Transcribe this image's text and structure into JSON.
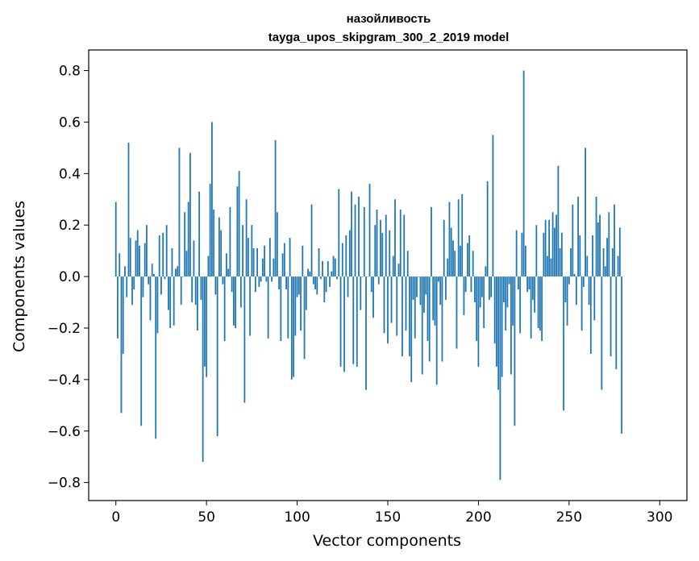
{
  "chart_data": {
    "type": "bar",
    "title_line1": "назойливость",
    "title_line2": "tayga_upos_skipgram_300_2_2019 model",
    "xlabel": "Vector components",
    "ylabel": "Components values",
    "xlim": [
      -15,
      315
    ],
    "ylim": [
      -0.87,
      0.88
    ],
    "x_ticks": [
      0,
      50,
      100,
      150,
      200,
      250,
      300
    ],
    "x_tick_labels": [
      "0",
      "50",
      "100",
      "150",
      "200",
      "250",
      "300"
    ],
    "y_ticks": [
      -0.8,
      -0.6,
      -0.4,
      -0.2,
      0.0,
      0.2,
      0.4,
      0.6,
      0.8
    ],
    "y_tick_labels": [
      "−0.8",
      "−0.6",
      "−0.4",
      "−0.2",
      "0.0",
      "0.2",
      "0.4",
      "0.6",
      "0.8"
    ],
    "grid": false,
    "bar_color": "#1f77b4",
    "values": [
      0.29,
      -0.24,
      0.09,
      -0.53,
      -0.3,
      0.04,
      -0.08,
      0.52,
      0.15,
      -0.11,
      -0.05,
      0.14,
      0.18,
      0.12,
      -0.58,
      -0.08,
      0.13,
      0.2,
      -0.03,
      -0.17,
      0.05,
      0.01,
      -0.63,
      -0.22,
      0.16,
      -0.07,
      0.17,
      -0.01,
      0.2,
      -0.13,
      -0.2,
      0.11,
      -0.19,
      0.03,
      0.04,
      0.5,
      -0.11,
      0.0,
      0.25,
      0.1,
      0.29,
      0.48,
      -0.1,
      0.14,
      -0.11,
      -0.21,
      0.33,
      -0.09,
      -0.72,
      -0.35,
      -0.39,
      0.08,
      0.36,
      0.6,
      0.26,
      -0.07,
      -0.62,
      0.23,
      0.18,
      -0.03,
      -0.25,
      0.09,
      0.03,
      0.27,
      -0.06,
      -0.19,
      -0.2,
      0.35,
      0.41,
      -0.12,
      0.2,
      -0.49,
      0.3,
      0.15,
      -0.23,
      0.2,
      0.11,
      -0.06,
      0.11,
      -0.04,
      -0.02,
      0.07,
      0.12,
      -0.02,
      -0.24,
      0.15,
      -0.02,
      0.07,
      0.53,
      0.25,
      -0.05,
      -0.25,
      0.09,
      0.13,
      -0.05,
      -0.24,
      0.15,
      -0.4,
      -0.39,
      -0.23,
      -0.08,
      -0.07,
      -0.21,
      0.12,
      -0.32,
      -0.13,
      0.03,
      0.02,
      0.28,
      -0.03,
      -0.05,
      -0.07,
      0.11,
      -0.01,
      0.06,
      -0.1,
      -0.06,
      0.06,
      -0.04,
      0.02,
      0.08,
      0.07,
      -0.01,
      0.34,
      -0.35,
      0.13,
      -0.37,
      0.16,
      -0.08,
      0.18,
      0.33,
      -0.34,
      0.28,
      -0.35,
      0.31,
      -0.13,
      0.0,
      0.27,
      -0.44,
      0.0,
      0.36,
      -0.06,
      -0.16,
      0.2,
      0.26,
      -0.03,
      0.22,
      0.17,
      -0.22,
      0.24,
      -0.26,
      0.18,
      -0.18,
      0.08,
      0.3,
      -0.23,
      0.05,
      0.26,
      -0.31,
      0.24,
      -0.21,
      0.1,
      -0.31,
      -0.41,
      -0.09,
      -0.24,
      -0.08,
      0.0,
      -0.11,
      -0.38,
      -0.14,
      -0.07,
      -0.25,
      -0.33,
      0.27,
      -0.17,
      -0.19,
      -0.42,
      -0.02,
      -0.11,
      -0.33,
      0.22,
      -0.09,
      0.07,
      0.29,
      0.19,
      0.14,
      0.1,
      -0.28,
      0.3,
      0.12,
      0.32,
      -0.15,
      -0.06,
      0.13,
      0.16,
      -0.06,
      0.1,
      -0.1,
      -0.25,
      -0.35,
      -0.12,
      -0.08,
      -0.2,
      0.04,
      0.37,
      -0.09,
      -0.08,
      0.55,
      -0.26,
      -0.35,
      -0.44,
      -0.79,
      -0.39,
      -0.1,
      -0.21,
      -0.12,
      -0.03,
      -0.38,
      -0.19,
      -0.58,
      0.18,
      -0.05,
      -0.22,
      0.17,
      0.8,
      0.12,
      -0.06,
      -0.05,
      -0.24,
      -0.09,
      -0.14,
      0.2,
      -0.2,
      -0.21,
      -0.25,
      0.17,
      0.22,
      0.08,
      0.22,
      0.07,
      0.25,
      0.19,
      0.24,
      0.43,
      0.11,
      0.17,
      -0.52,
      -0.1,
      -0.19,
      -0.03,
      0.11,
      0.28,
      0.01,
      -0.11,
      0.31,
      0.16,
      -0.21,
      -0.04,
      0.5,
      0.08,
      -0.11,
      -0.3,
      0.16,
      -0.17,
      0.31,
      0.21,
      0.24,
      -0.44,
      0.11,
      0.04,
      0.15,
      0.25,
      -0.31,
      0.11,
      0.28,
      -0.36,
      0.08,
      0.19,
      -0.61
    ]
  }
}
